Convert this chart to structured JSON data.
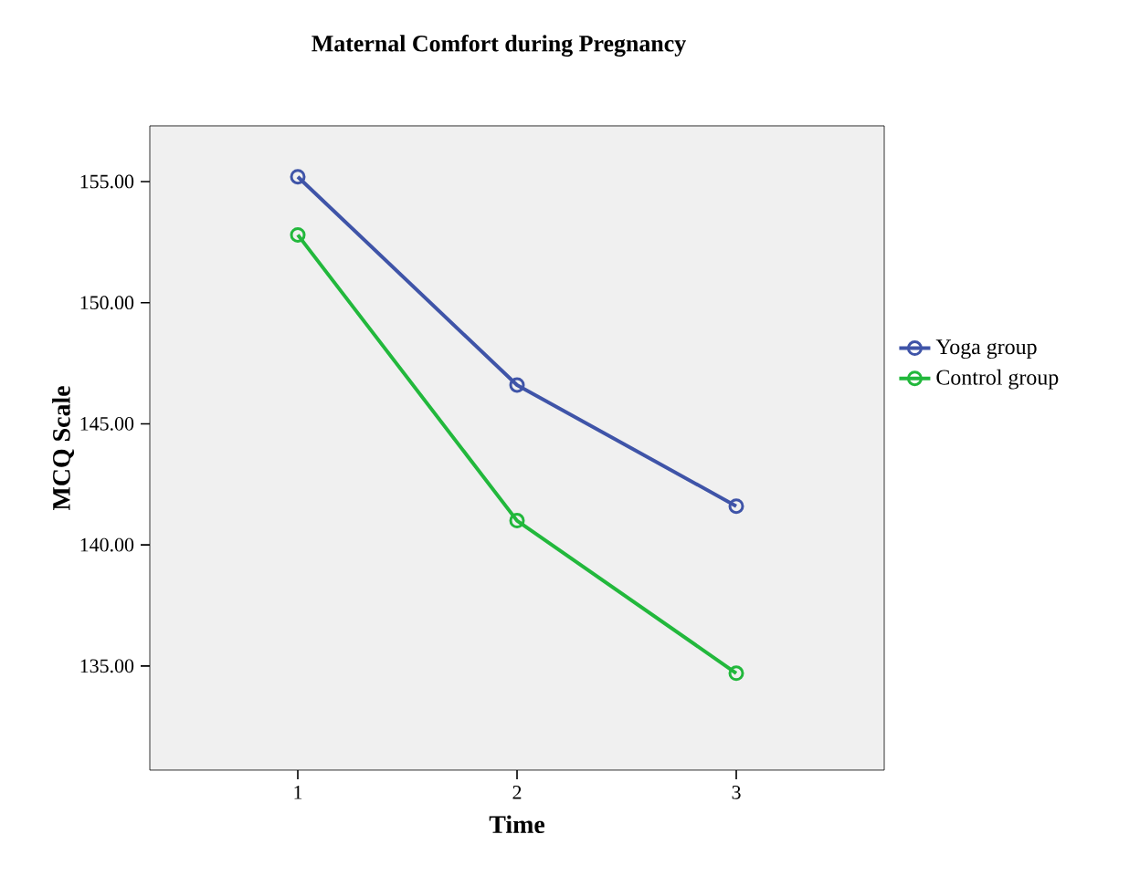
{
  "chart_data": {
    "type": "line",
    "title": "Maternal Comfort during Pregnancy",
    "xlabel": "Time",
    "ylabel": "MCQ Scale",
    "categories": [
      "1",
      "2",
      "3"
    ],
    "series": [
      {
        "name": "Yoga group",
        "color": "#3f54a8",
        "values": [
          155.2,
          146.6,
          141.6
        ]
      },
      {
        "name": "Control group",
        "color": "#22b83c",
        "values": [
          152.8,
          141.0,
          134.7
        ]
      }
    ],
    "ylim": [
      130.7,
      157.3
    ],
    "yticks": [
      {
        "value": 135,
        "label": "135.00"
      },
      {
        "value": 140,
        "label": "140.00"
      },
      {
        "value": 145,
        "label": "145.00"
      },
      {
        "value": 150,
        "label": "150.00"
      },
      {
        "value": 155,
        "label": "155.00"
      }
    ],
    "grid": false,
    "legend": "right",
    "marker": "circle",
    "line_style": "solid"
  }
}
